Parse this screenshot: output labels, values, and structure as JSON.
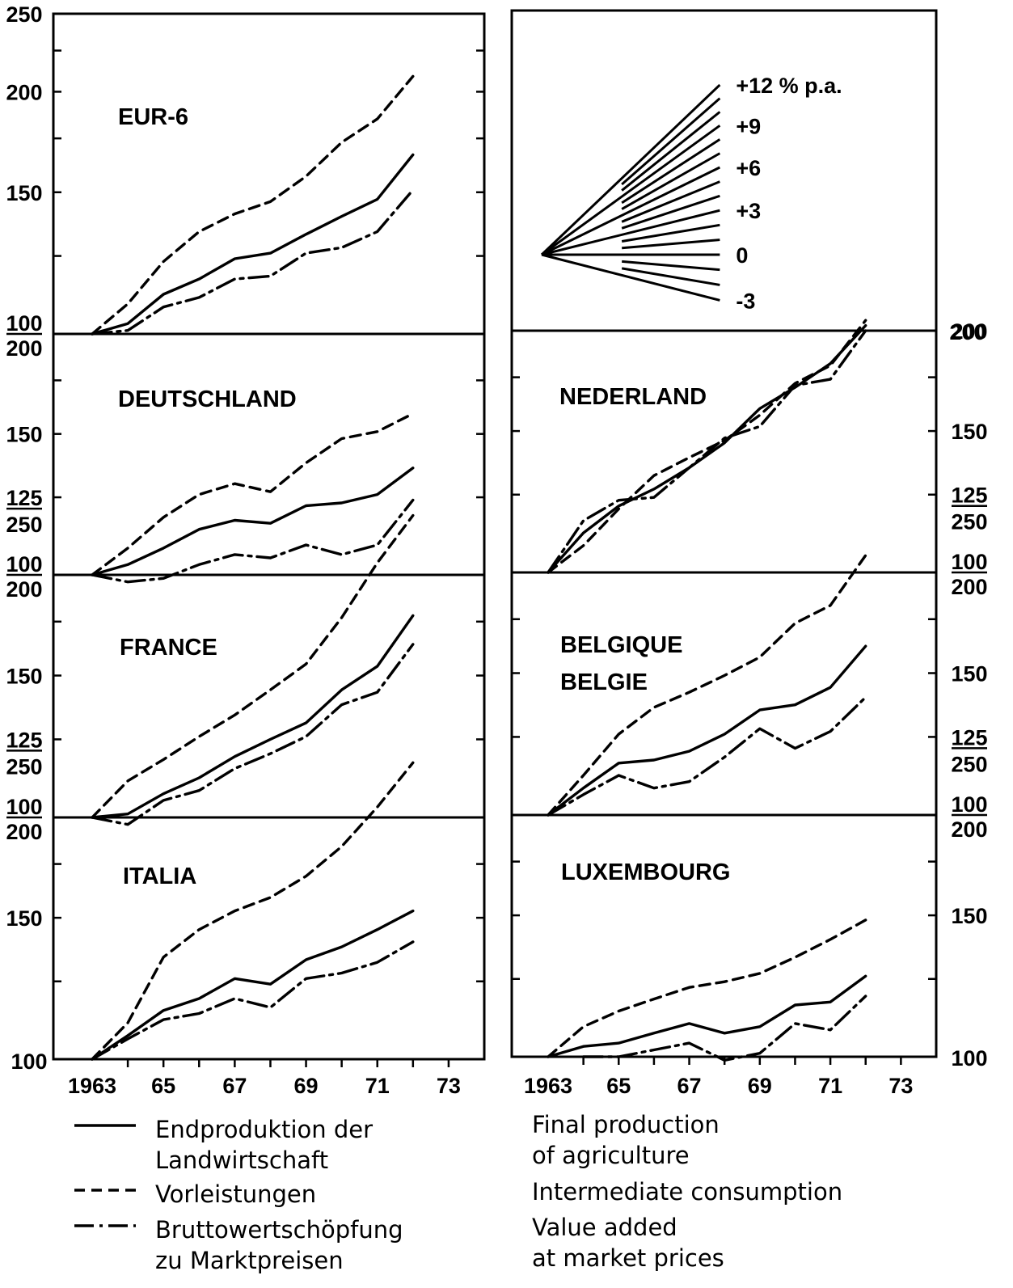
{
  "chart_data": {
    "type": "line",
    "x_ticks": [
      "1963",
      "65",
      "67",
      "69",
      "71",
      "73"
    ],
    "x_range": [
      1963,
      1974
    ],
    "series_styles": [
      "solid",
      "dashed",
      "dash-dot"
    ],
    "legend": {
      "de": [
        {
          "style": "solid",
          "lines": [
            "Endproduktion der",
            "Landwirtschaft"
          ]
        },
        {
          "style": "dashed",
          "lines": [
            "Vorleistungen"
          ]
        },
        {
          "style": "dash-dot",
          "lines": [
            "Bruttowertschöpfung",
            "zu Marktpreisen"
          ]
        }
      ],
      "en": [
        {
          "lines": [
            "Final production",
            "of agriculture"
          ]
        },
        {
          "lines": [
            "Intermediate consumption"
          ]
        },
        {
          "lines": [
            "Value added",
            "at market prices"
          ]
        }
      ]
    },
    "growth_key": {
      "rates": [
        12,
        11,
        10,
        9,
        8,
        7,
        6,
        5,
        4,
        3,
        2,
        1,
        0,
        -1,
        -2,
        -3
      ],
      "labels": [
        "+12 % p.a.",
        "+9",
        "+6",
        "+3",
        "0",
        "-3"
      ],
      "label_rates": [
        12,
        9,
        6,
        3,
        0,
        -3
      ]
    },
    "panels": [
      {
        "title": [
          "EUR-6"
        ],
        "scale": "log",
        "range": [
          100,
          250
        ],
        "ticks": [
          {
            "v": 250,
            "t": "250"
          },
          {
            "v": 200,
            "t": "200"
          },
          {
            "v": 150,
            "t": "150"
          }
        ],
        "series": [
          {
            "style": "solid",
            "x": [
              1963,
              1964,
              1965,
              1966,
              1967,
              1968,
              1969,
              1970,
              1971,
              1972
            ],
            "y": [
              100,
              103,
              112,
              117,
              124,
              126,
              133,
              140,
              147,
              167
            ]
          },
          {
            "style": "dashed",
            "x": [
              1963,
              1964,
              1965,
              1966,
              1967,
              1968,
              1969,
              1970,
              1971,
              1972
            ],
            "y": [
              100,
              109,
              123,
              134,
              141,
              146,
              157,
              173,
              185,
              209
            ]
          },
          {
            "style": "dash-dot",
            "x": [
              1963,
              1964,
              1965,
              1966,
              1967,
              1968,
              1969,
              1970,
              1971,
              1972
            ],
            "y": [
              100,
              101,
              108,
              111,
              117,
              118,
              126,
              128,
              134,
              151
            ]
          }
        ]
      },
      {
        "title": [
          "DEUTSCHLAND"
        ],
        "scale": "log",
        "range": [
          100,
          200
        ],
        "ticks": [
          {
            "v": 150,
            "t": "150"
          },
          {
            "v": 125,
            "t": "125"
          }
        ],
        "series": [
          {
            "style": "solid",
            "x": [
              1963,
              1964,
              1965,
              1966,
              1967,
              1968,
              1969,
              1970,
              1971,
              1972
            ],
            "y": [
              100,
              103,
              108,
              114,
              117,
              116,
              122,
              123,
              126,
              136
            ]
          },
          {
            "style": "dashed",
            "x": [
              1963,
              1964,
              1965,
              1966,
              1967,
              1968,
              1969,
              1970,
              1971,
              1972
            ],
            "y": [
              100,
              108,
              118,
              126,
              130,
              127,
              138,
              148,
              151,
              159
            ]
          },
          {
            "style": "dash-dot",
            "x": [
              1963,
              1964,
              1965,
              1966,
              1967,
              1968,
              1969,
              1970,
              1971,
              1972
            ],
            "y": [
              100,
              98,
              99,
              103,
              106,
              105,
              109,
              106,
              109,
              124
            ]
          }
        ]
      },
      {
        "title": [
          "FRANCE"
        ],
        "scale": "log",
        "range": [
          100,
          200
        ],
        "ticks": [
          {
            "v": 150,
            "t": "150"
          },
          {
            "v": 125,
            "t": "125"
          }
        ],
        "series": [
          {
            "style": "solid",
            "x": [
              1963,
              1964,
              1965,
              1966,
              1967,
              1968,
              1969,
              1970,
              1971,
              1972
            ],
            "y": [
              100,
              101,
              107,
              112,
              119,
              125,
              131,
              144,
              154,
              178
            ]
          },
          {
            "style": "dashed",
            "x": [
              1963,
              1964,
              1965,
              1966,
              1967,
              1968,
              1969,
              1970,
              1971,
              1972
            ],
            "y": [
              100,
              111,
              118,
              126,
              134,
              144,
              155,
              177,
              207,
              237
            ]
          },
          {
            "style": "dash-dot",
            "x": [
              1963,
              1964,
              1965,
              1966,
              1967,
              1968,
              1969,
              1970,
              1971,
              1972
            ],
            "y": [
              100,
              98,
              105,
              108,
              115,
              120,
              126,
              138,
              143,
              164
            ]
          }
        ]
      },
      {
        "title": [
          "ITALIA"
        ],
        "scale": "log",
        "range": [
          100,
          200
        ],
        "ticks": [
          {
            "v": 150,
            "t": "150"
          }
        ],
        "series": [
          {
            "style": "solid",
            "x": [
              1963,
              1964,
              1965,
              1966,
              1967,
              1968,
              1969,
              1970,
              1971,
              1972
            ],
            "y": [
              100,
              107,
              115,
              119,
              126,
              124,
              133,
              138,
              145,
              153
            ]
          },
          {
            "style": "dashed",
            "x": [
              1963,
              1964,
              1965,
              1966,
              1967,
              1968,
              1969,
              1970,
              1971,
              1972
            ],
            "y": [
              100,
              111,
              134,
              145,
              153,
              159,
              169,
              184,
              206,
              234
            ]
          },
          {
            "style": "dash-dot",
            "x": [
              1963,
              1964,
              1965,
              1966,
              1967,
              1968,
              1969,
              1970,
              1971,
              1972
            ],
            "y": [
              100,
              106,
              112,
              114,
              119,
              116,
              126,
              128,
              132,
              140
            ]
          }
        ]
      },
      {
        "title": [
          "NEDERLAND"
        ],
        "scale": "log",
        "range": [
          100,
          200
        ],
        "ticks": [
          {
            "v": 200,
            "t": "200"
          },
          {
            "v": 150,
            "t": "150"
          },
          {
            "v": 125,
            "t": "125"
          }
        ],
        "series": [
          {
            "style": "solid",
            "x": [
              1963,
              1964,
              1965,
              1966,
              1967,
              1968,
              1969,
              1970,
              1971,
              1972
            ],
            "y": [
              100,
              112,
              121,
              127,
              135,
              145,
              160,
              170,
              182,
              203
            ]
          },
          {
            "style": "dashed",
            "x": [
              1963,
              1964,
              1965,
              1966,
              1967,
              1968,
              1969,
              1970,
              1971,
              1972
            ],
            "y": [
              100,
              108,
              120,
              132,
              139,
              146,
              157,
              172,
              181,
              206
            ]
          },
          {
            "style": "dash-dot",
            "x": [
              1963,
              1964,
              1965,
              1966,
              1967,
              1968,
              1969,
              1970,
              1971,
              1972
            ],
            "y": [
              100,
              116,
              123,
              124,
              135,
              147,
              152,
              171,
              174,
              200
            ]
          }
        ]
      },
      {
        "title": [
          "BELGIQUE",
          "BELGIE"
        ],
        "scale": "log",
        "range": [
          100,
          200
        ],
        "ticks": [
          {
            "v": 150,
            "t": "150"
          },
          {
            "v": 125,
            "t": "125"
          }
        ],
        "series": [
          {
            "style": "solid",
            "x": [
              1963,
              1964,
              1965,
              1966,
              1967,
              1968,
              1969,
              1970,
              1971,
              1972
            ],
            "y": [
              100,
              108,
              116,
              117,
              120,
              126,
              135,
              137,
              144,
              162
            ]
          },
          {
            "style": "dashed",
            "x": [
              1963,
              1964,
              1965,
              1966,
              1967,
              1968,
              1969,
              1970,
              1971,
              1972
            ],
            "y": [
              100,
              112,
              126,
              136,
              142,
              149,
              157,
              173,
              182,
              210
            ]
          },
          {
            "style": "dash-dot",
            "x": [
              1963,
              1964,
              1965,
              1966,
              1967,
              1968,
              1969,
              1970,
              1971,
              1972
            ],
            "y": [
              100,
              106,
              112,
              108,
              110,
              118,
              128,
              121,
              127,
              140
            ]
          }
        ]
      },
      {
        "title": [
          "LUXEMBOURG"
        ],
        "scale": "log",
        "range": [
          100,
          200
        ],
        "ticks": [
          {
            "v": 150,
            "t": "150"
          }
        ],
        "series": [
          {
            "style": "solid",
            "x": [
              1963,
              1964,
              1965,
              1966,
              1967,
              1968,
              1969,
              1970,
              1971,
              1972
            ],
            "y": [
              100,
              103,
              104,
              107,
              110,
              107,
              109,
              116,
              117,
              126
            ]
          },
          {
            "style": "dashed",
            "x": [
              1963,
              1964,
              1965,
              1966,
              1967,
              1968,
              1969,
              1970,
              1971,
              1972
            ],
            "y": [
              100,
              109,
              114,
              118,
              122,
              124,
              127,
              133,
              140,
              148
            ]
          },
          {
            "style": "dash-dot",
            "x": [
              1963,
              1964,
              1965,
              1966,
              1967,
              1968,
              1969,
              1970,
              1971,
              1972
            ],
            "y": [
              null,
              100,
              100,
              102,
              104,
              99,
              101,
              110,
              108,
              119
            ]
          }
        ]
      }
    ]
  }
}
